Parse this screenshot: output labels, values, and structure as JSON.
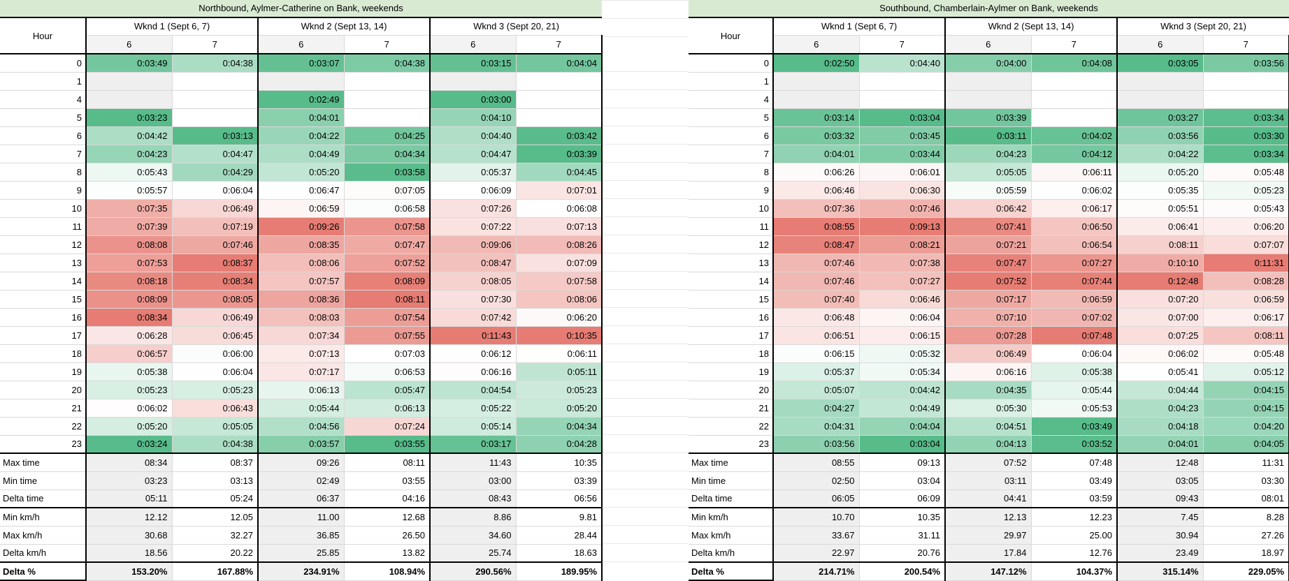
{
  "style": {
    "title_bg": "#d9ead3",
    "header_col6_bg": "#f3f3f3",
    "empty_col6_bg": "#efefef",
    "heat_green": "#57bb8a",
    "heat_red": "#e67c73",
    "heat_mid": "#ffffff",
    "grid_line": "#d9d9d9",
    "border": "#000000"
  },
  "tables": [
    {
      "id": "northbound",
      "title": "Northbound, Aylmer-Catherine on Bank, weekends",
      "hour_header": "Hour",
      "group_headers": [
        "Wknd 1 (Sept 6, 7)",
        "Wknd 2 (Sept 13, 14)",
        "Wknd 3 (Sept 20, 21)"
      ],
      "day_headers": [
        "6",
        "7",
        "6",
        "7",
        "6",
        "7"
      ],
      "rows": [
        {
          "hour": "0",
          "values": [
            "0:03:49",
            "0:04:38",
            "0:03:07",
            "0:04:38",
            "0:03:15",
            "0:04:04"
          ]
        },
        {
          "hour": "1",
          "values": [
            "",
            "",
            "",
            "",
            "",
            ""
          ]
        },
        {
          "hour": "4",
          "values": [
            "",
            "",
            "0:02:49",
            "",
            "0:03:00",
            ""
          ]
        },
        {
          "hour": "5",
          "values": [
            "0:03:23",
            "",
            "0:04:01",
            "",
            "0:04:10",
            ""
          ]
        },
        {
          "hour": "6",
          "values": [
            "0:04:42",
            "0:03:13",
            "0:04:22",
            "0:04:25",
            "0:04:40",
            "0:03:42"
          ]
        },
        {
          "hour": "7",
          "values": [
            "0:04:23",
            "0:04:47",
            "0:04:49",
            "0:04:34",
            "0:04:47",
            "0:03:39"
          ]
        },
        {
          "hour": "8",
          "values": [
            "0:05:43",
            "0:04:29",
            "0:05:20",
            "0:03:58",
            "0:05:37",
            "0:04:45"
          ]
        },
        {
          "hour": "9",
          "values": [
            "0:05:57",
            "0:06:04",
            "0:06:47",
            "0:07:05",
            "0:06:09",
            "0:07:01"
          ]
        },
        {
          "hour": "10",
          "values": [
            "0:07:35",
            "0:06:49",
            "0:06:59",
            "0:06:58",
            "0:07:26",
            "0:06:08"
          ]
        },
        {
          "hour": "11",
          "values": [
            "0:07:39",
            "0:07:19",
            "0:09:26",
            "0:07:58",
            "0:07:22",
            "0:07:13"
          ]
        },
        {
          "hour": "12",
          "values": [
            "0:08:08",
            "0:07:46",
            "0:08:35",
            "0:07:47",
            "0:09:06",
            "0:08:26"
          ]
        },
        {
          "hour": "13",
          "values": [
            "0:07:53",
            "0:08:37",
            "0:08:06",
            "0:07:52",
            "0:08:47",
            "0:07:09"
          ]
        },
        {
          "hour": "14",
          "values": [
            "0:08:18",
            "0:08:34",
            "0:07:57",
            "0:08:09",
            "0:08:05",
            "0:07:58"
          ]
        },
        {
          "hour": "15",
          "values": [
            "0:08:09",
            "0:08:05",
            "0:08:36",
            "0:08:11",
            "0:07:30",
            "0:08:06"
          ]
        },
        {
          "hour": "16",
          "values": [
            "0:08:34",
            "0:06:49",
            "0:08:03",
            "0:07:54",
            "0:07:42",
            "0:06:20"
          ]
        },
        {
          "hour": "17",
          "values": [
            "0:06:28",
            "0:06:45",
            "0:07:34",
            "0:07:55",
            "0:11:43",
            "0:10:35"
          ]
        },
        {
          "hour": "18",
          "values": [
            "0:06:57",
            "0:06:00",
            "0:07:13",
            "0:07:03",
            "0:06:12",
            "0:06:11"
          ]
        },
        {
          "hour": "19",
          "values": [
            "0:05:38",
            "0:06:04",
            "0:07:17",
            "0:06:53",
            "0:06:16",
            "0:05:11"
          ]
        },
        {
          "hour": "20",
          "values": [
            "0:05:23",
            "0:05:23",
            "0:06:13",
            "0:05:47",
            "0:04:54",
            "0:05:23"
          ]
        },
        {
          "hour": "21",
          "values": [
            "0:06:02",
            "0:06:43",
            "0:05:44",
            "0:06:13",
            "0:05:22",
            "0:05:20"
          ]
        },
        {
          "hour": "22",
          "values": [
            "0:05:20",
            "0:05:05",
            "0:04:56",
            "0:07:24",
            "0:05:14",
            "0:04:34"
          ]
        },
        {
          "hour": "23",
          "values": [
            "0:03:24",
            "0:04:38",
            "0:03:57",
            "0:03:55",
            "0:03:17",
            "0:04:28"
          ]
        }
      ],
      "summary": [
        {
          "label": "Max time",
          "values": [
            "08:34",
            "08:37",
            "09:26",
            "08:11",
            "11:43",
            "10:35"
          ]
        },
        {
          "label": "Min time",
          "values": [
            "03:23",
            "03:13",
            "02:49",
            "03:55",
            "03:00",
            "03:39"
          ]
        },
        {
          "label": "Delta time",
          "values": [
            "05:11",
            "05:24",
            "06:37",
            "04:16",
            "08:43",
            "06:56"
          ]
        },
        {
          "label": "Min km/h",
          "values": [
            "12.12",
            "12.05",
            "11.00",
            "12.68",
            "8.86",
            "9.81"
          ]
        },
        {
          "label": "Max km/h",
          "values": [
            "30.68",
            "32.27",
            "36.85",
            "26.50",
            "34.60",
            "28.44"
          ]
        },
        {
          "label": "Delta km/h",
          "values": [
            "18.56",
            "20.22",
            "25.85",
            "13.82",
            "25.74",
            "18.63"
          ]
        },
        {
          "label": "Delta %",
          "values": [
            "153.20%",
            "167.88%",
            "234.91%",
            "108.94%",
            "290.56%",
            "189.95%"
          ]
        }
      ]
    },
    {
      "id": "southbound",
      "title": "Southbound, Chamberlain-Aylmer on Bank, weekends",
      "hour_header": "Hour",
      "group_headers": [
        "Wknd 1 (Sept 6, 7)",
        "Wknd 2 (Sept 13, 14)",
        "Wknd 3 (Sept 20, 21)"
      ],
      "day_headers": [
        "6",
        "7",
        "6",
        "7",
        "6",
        "7"
      ],
      "rows": [
        {
          "hour": "0",
          "values": [
            "0:02:50",
            "0:04:40",
            "0:04:00",
            "0:04:08",
            "0:03:05",
            "0:03:56"
          ]
        },
        {
          "hour": "1",
          "values": [
            "",
            "",
            "",
            "",
            "",
            ""
          ]
        },
        {
          "hour": "4",
          "values": [
            "",
            "",
            "",
            "",
            "",
            ""
          ]
        },
        {
          "hour": "5",
          "values": [
            "0:03:14",
            "0:03:04",
            "0:03:39",
            "",
            "0:03:27",
            "0:03:34"
          ]
        },
        {
          "hour": "6",
          "values": [
            "0:03:32",
            "0:03:45",
            "0:03:11",
            "0:04:02",
            "0:03:56",
            "0:03:30"
          ]
        },
        {
          "hour": "7",
          "values": [
            "0:04:01",
            "0:03:44",
            "0:04:23",
            "0:04:12",
            "0:04:22",
            "0:03:34"
          ]
        },
        {
          "hour": "8",
          "values": [
            "0:06:26",
            "0:06:01",
            "0:05:05",
            "0:06:11",
            "0:05:20",
            "0:05:48"
          ]
        },
        {
          "hour": "9",
          "values": [
            "0:06:46",
            "0:06:30",
            "0:05:59",
            "0:06:02",
            "0:05:35",
            "0:05:23"
          ]
        },
        {
          "hour": "10",
          "values": [
            "0:07:36",
            "0:07:46",
            "0:06:42",
            "0:06:17",
            "0:05:51",
            "0:05:43"
          ]
        },
        {
          "hour": "11",
          "values": [
            "0:08:55",
            "0:09:13",
            "0:07:41",
            "0:06:50",
            "0:06:41",
            "0:06:20"
          ]
        },
        {
          "hour": "12",
          "values": [
            "0:08:47",
            "0:08:21",
            "0:07:21",
            "0:06:54",
            "0:08:11",
            "0:07:07"
          ]
        },
        {
          "hour": "13",
          "values": [
            "0:07:46",
            "0:07:38",
            "0:07:47",
            "0:07:27",
            "0:10:10",
            "0:11:31"
          ]
        },
        {
          "hour": "14",
          "values": [
            "0:07:46",
            "0:07:27",
            "0:07:52",
            "0:07:44",
            "0:12:48",
            "0:08:28"
          ]
        },
        {
          "hour": "15",
          "values": [
            "0:07:40",
            "0:06:46",
            "0:07:17",
            "0:06:59",
            "0:07:20",
            "0:06:59"
          ]
        },
        {
          "hour": "16",
          "values": [
            "0:06:48",
            "0:06:04",
            "0:07:10",
            "0:07:02",
            "0:07:00",
            "0:06:17"
          ]
        },
        {
          "hour": "17",
          "values": [
            "0:06:51",
            "0:06:15",
            "0:07:28",
            "0:07:48",
            "0:07:25",
            "0:08:11"
          ]
        },
        {
          "hour": "18",
          "values": [
            "0:06:15",
            "0:05:32",
            "0:06:49",
            "0:06:04",
            "0:06:02",
            "0:05:48"
          ]
        },
        {
          "hour": "19",
          "values": [
            "0:05:37",
            "0:05:34",
            "0:06:16",
            "0:05:38",
            "0:05:41",
            "0:05:12"
          ]
        },
        {
          "hour": "20",
          "values": [
            "0:05:07",
            "0:04:42",
            "0:04:35",
            "0:05:44",
            "0:04:44",
            "0:04:15"
          ]
        },
        {
          "hour": "21",
          "values": [
            "0:04:27",
            "0:04:49",
            "0:05:30",
            "0:05:53",
            "0:04:23",
            "0:04:15"
          ]
        },
        {
          "hour": "22",
          "values": [
            "0:04:31",
            "0:04:04",
            "0:04:51",
            "0:03:49",
            "0:04:18",
            "0:04:20"
          ]
        },
        {
          "hour": "23",
          "values": [
            "0:03:56",
            "0:03:04",
            "0:04:13",
            "0:03:52",
            "0:04:01",
            "0:04:05"
          ]
        }
      ],
      "summary": [
        {
          "label": "Max time",
          "values": [
            "08:55",
            "09:13",
            "07:52",
            "07:48",
            "12:48",
            "11:31"
          ]
        },
        {
          "label": "Min time",
          "values": [
            "02:50",
            "03:04",
            "03:11",
            "03:49",
            "03:05",
            "03:30"
          ]
        },
        {
          "label": "Delta time",
          "values": [
            "06:05",
            "06:09",
            "04:41",
            "03:59",
            "09:43",
            "08:01"
          ]
        },
        {
          "label": "Min km/h",
          "values": [
            "10.70",
            "10.35",
            "12.13",
            "12.23",
            "7.45",
            "8.28"
          ]
        },
        {
          "label": "Max km/h",
          "values": [
            "33.67",
            "31.11",
            "29.97",
            "25.00",
            "30.94",
            "27.26"
          ]
        },
        {
          "label": "Delta km/h",
          "values": [
            "22.97",
            "20.76",
            "17.84",
            "12.76",
            "23.49",
            "18.97"
          ]
        },
        {
          "label": "Delta %",
          "values": [
            "214.71%",
            "200.54%",
            "147.12%",
            "104.37%",
            "315.14%",
            "229.05%"
          ]
        }
      ]
    }
  ]
}
